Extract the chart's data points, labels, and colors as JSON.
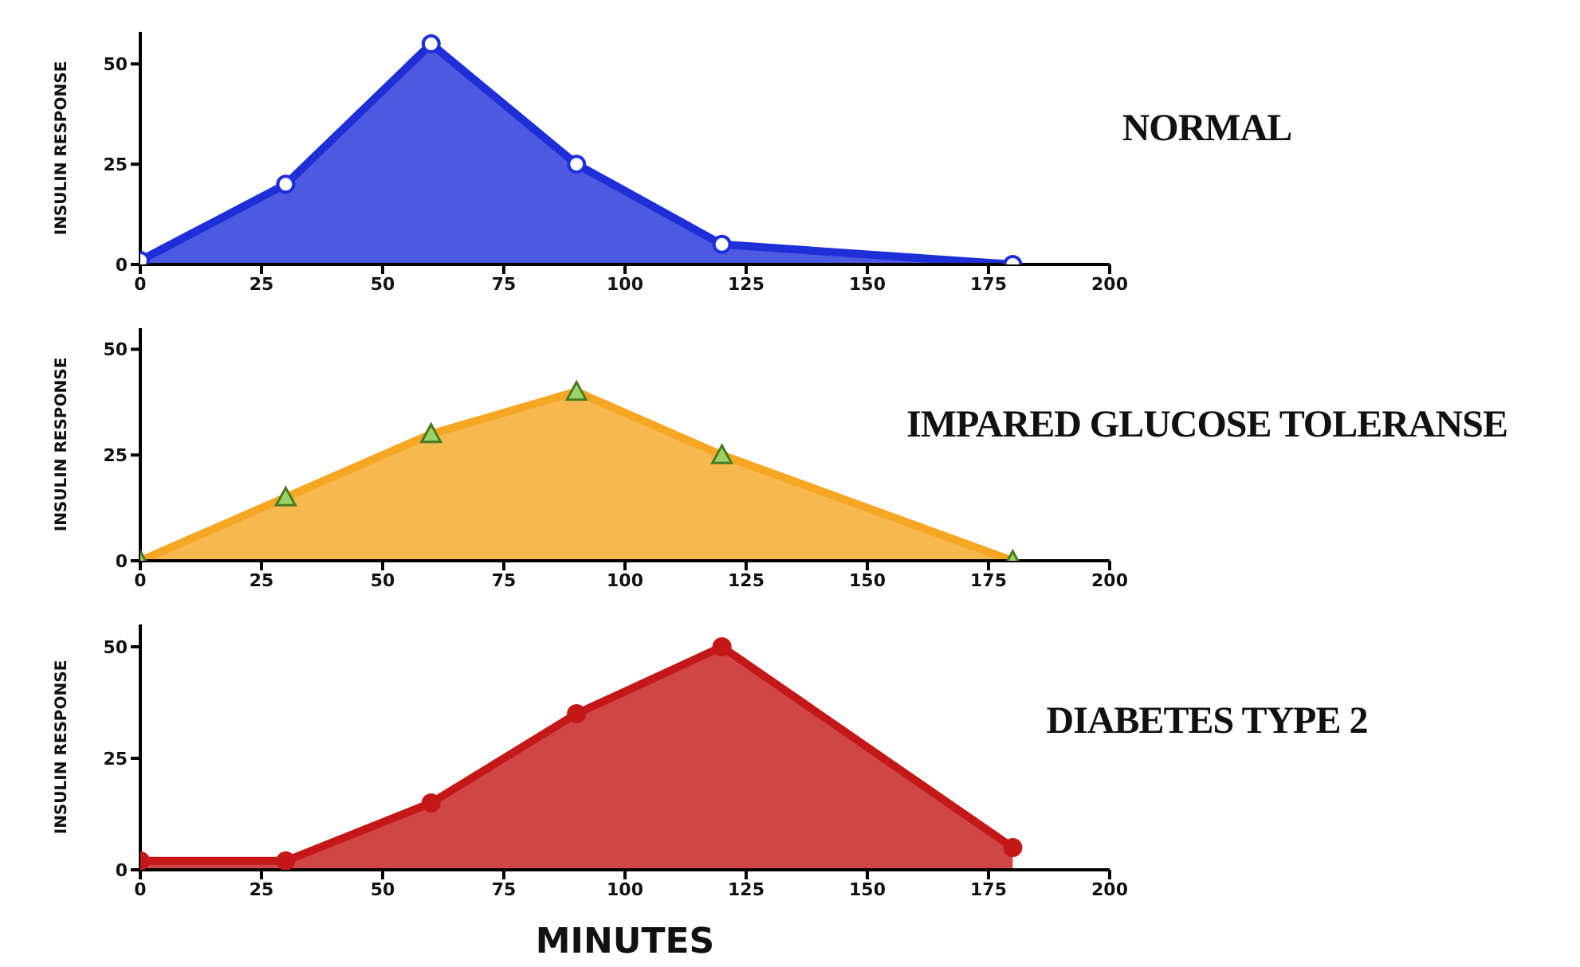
{
  "chart_data": [
    {
      "type": "area",
      "title": "NORMAL",
      "ylabel": "INSULIN RESPONSE",
      "x": [
        0,
        30,
        60,
        90,
        120,
        180
      ],
      "series": [
        {
          "color": "#1f2fd8",
          "values": [
            1,
            20,
            55,
            25,
            5,
            0
          ]
        }
      ],
      "xlim": [
        0,
        200
      ],
      "xticks": [
        0,
        25,
        50,
        75,
        100,
        125,
        150,
        175,
        200
      ],
      "ylim": [
        0,
        58
      ],
      "yticks": [
        0,
        25,
        50
      ],
      "marker": "circle",
      "grid": false,
      "legend": false
    },
    {
      "type": "area",
      "title": "IMPARED GLUCOSE TOLERANSE",
      "ylabel": "INSULIN RESPONSE",
      "x": [
        0,
        30,
        60,
        90,
        120,
        180
      ],
      "series": [
        {
          "color": "#f5a623",
          "values": [
            0,
            15,
            30,
            40,
            25,
            0
          ]
        }
      ],
      "xlim": [
        0,
        200
      ],
      "xticks": [
        0,
        25,
        50,
        75,
        100,
        125,
        150,
        175,
        200
      ],
      "ylim": [
        0,
        55
      ],
      "yticks": [
        0,
        25,
        50
      ],
      "marker": "triangle",
      "grid": false,
      "legend": false
    },
    {
      "type": "area",
      "title": "DIABETES TYPE 2",
      "ylabel": "INSULIN RESPONSE",
      "xlabel": "MINUTES",
      "x": [
        0,
        30,
        60,
        90,
        120,
        180
      ],
      "series": [
        {
          "color": "#c41818",
          "values": [
            2,
            2,
            15,
            35,
            50,
            5
          ]
        }
      ],
      "xlim": [
        0,
        200
      ],
      "xticks": [
        0,
        25,
        50,
        75,
        100,
        125,
        150,
        175,
        200
      ],
      "ylim": [
        0,
        55
      ],
      "yticks": [
        0,
        25,
        50
      ],
      "marker": "circle",
      "grid": false,
      "legend": false
    }
  ]
}
